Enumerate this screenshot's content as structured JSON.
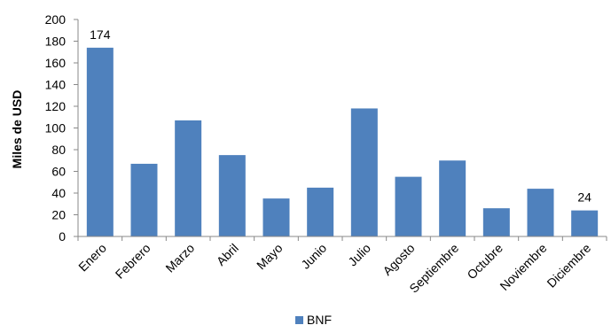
{
  "chart_data": {
    "type": "bar",
    "categories": [
      "Enero",
      "Febrero",
      "Marzo",
      "Abril",
      "Mayo",
      "Junio",
      "Julio",
      "Agosto",
      "Septiembre",
      "Octubre",
      "Noviembre",
      "Diciembre"
    ],
    "series": [
      {
        "name": "BNF",
        "values": [
          174,
          67,
          107,
          75,
          35,
          45,
          118,
          55,
          70,
          26,
          44,
          24
        ]
      }
    ],
    "data_labels": [
      {
        "category": "Enero",
        "text": "174"
      },
      {
        "category": "Diciembre",
        "text": "24"
      }
    ],
    "ylabel": "Miles de USD",
    "xlabel": "",
    "ylim": [
      0,
      200
    ],
    "yticks": [
      0,
      20,
      40,
      60,
      80,
      100,
      120,
      140,
      160,
      180,
      200
    ],
    "grid": false,
    "legend_position": "bottom",
    "colors": {
      "bar": "#4F81BD",
      "axis": "#888888"
    }
  }
}
